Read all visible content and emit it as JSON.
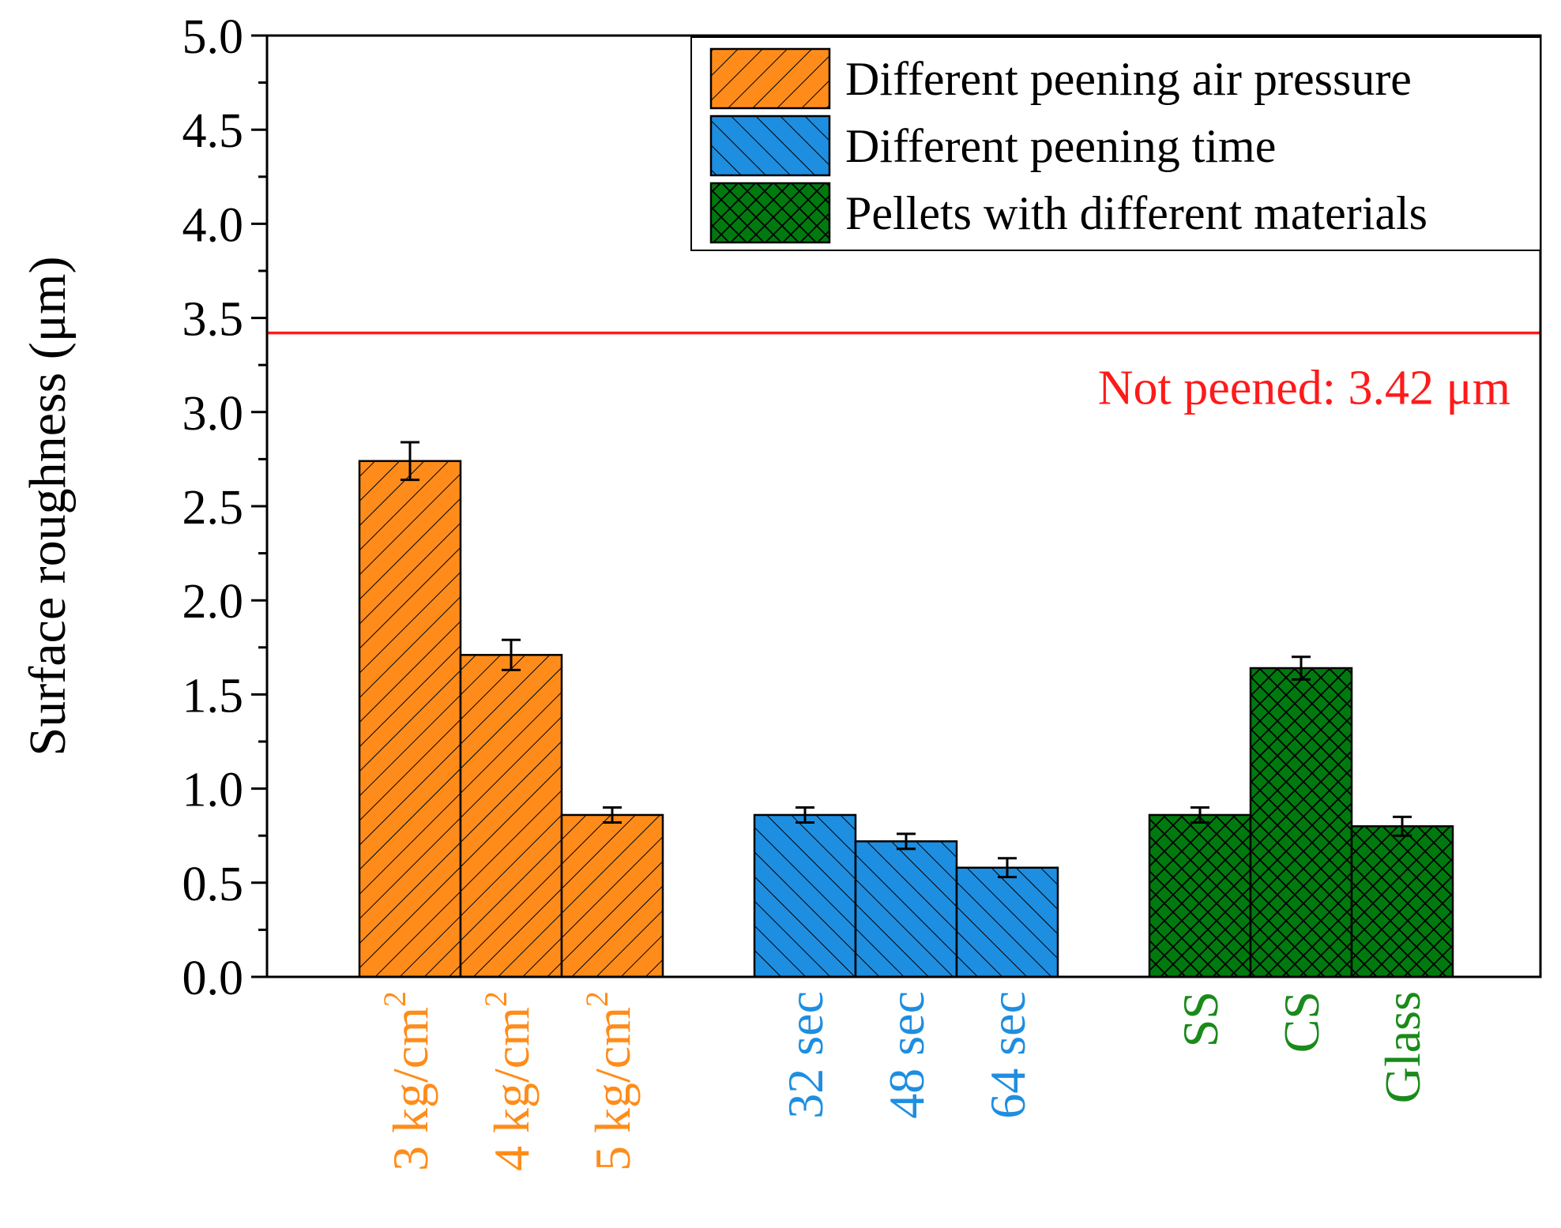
{
  "chart_data": {
    "type": "bar",
    "ylabel": "Surface roughness (μm)",
    "ylim": [
      0,
      5.0
    ],
    "yticks": [
      "0.0",
      "0.5",
      "1.0",
      "1.5",
      "2.0",
      "2.5",
      "3.0",
      "3.5",
      "4.0",
      "4.5",
      "5.0"
    ],
    "ytick_values": [
      0,
      0.5,
      1.0,
      1.5,
      2.0,
      2.5,
      3.0,
      3.5,
      4.0,
      4.5,
      5.0
    ],
    "grid": false,
    "legend_position": "top-right",
    "series": [
      {
        "name": "Different peening air pressure",
        "color": "#ff8c1a",
        "label_color": "#ff8c1a",
        "hatch": "forward-diagonal",
        "categories": [
          {
            "base": "3 kg/cm",
            "sup": "2"
          },
          {
            "base": "4 kg/cm",
            "sup": "2"
          },
          {
            "base": "5 kg/cm",
            "sup": "2"
          }
        ],
        "values": [
          2.74,
          1.71,
          0.86
        ],
        "errors": [
          0.1,
          0.08,
          0.04
        ]
      },
      {
        "name": "Different peening time",
        "color": "#1e8ee0",
        "label_color": "#1e8ee0",
        "hatch": "back-diagonal",
        "categories": [
          {
            "base": "32 sec",
            "sup": ""
          },
          {
            "base": "48 sec",
            "sup": ""
          },
          {
            "base": "64 sec",
            "sup": ""
          }
        ],
        "values": [
          0.86,
          0.72,
          0.58
        ],
        "errors": [
          0.04,
          0.04,
          0.05
        ]
      },
      {
        "name": "Pellets with different materials",
        "color": "#007a0f",
        "label_color": "#1a8a1a",
        "hatch": "crosshatch",
        "categories": [
          {
            "base": "SS",
            "sup": ""
          },
          {
            "base": "CS",
            "sup": ""
          },
          {
            "base": "Glass",
            "sup": ""
          }
        ],
        "values": [
          0.86,
          1.64,
          0.8
        ],
        "errors": [
          0.04,
          0.06,
          0.05
        ]
      }
    ],
    "reference_line": {
      "value": 3.42,
      "label": "Not peened: 3.42 μm",
      "color": "#ff1a1a"
    }
  }
}
